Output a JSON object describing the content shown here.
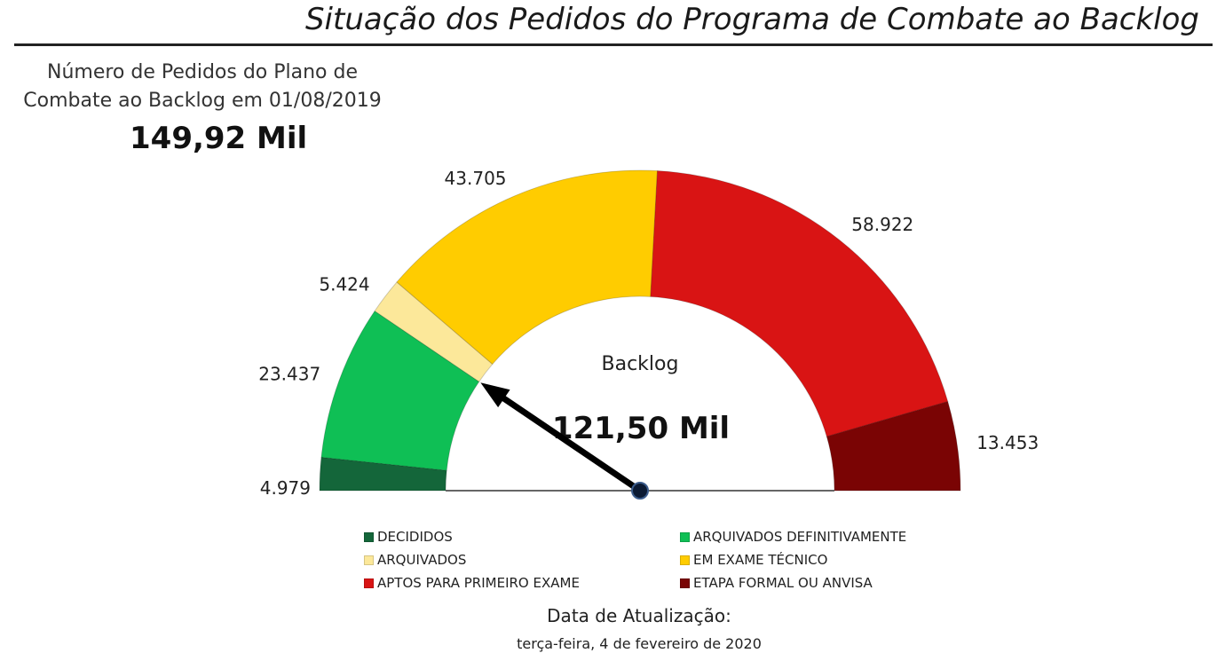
{
  "header": {
    "title": "Situação dos Pedidos do Programa de Combate ao Backlog"
  },
  "kpi": {
    "label": "Número de Pedidos do Plano de Combate ao Backlog em 01/08/2019",
    "value": "149,92 Mil"
  },
  "chart_data": {
    "type": "gauge",
    "center_label": "Backlog",
    "center_value": "121,50 Mil",
    "series": [
      {
        "name": "DECIDIDOS",
        "value": 4979,
        "label": "4.979",
        "color": "#14663a"
      },
      {
        "name": "ARQUIVADOS DEFINITIVAMENTE",
        "value": 23437,
        "label": "23.437",
        "color": "#0fbf55"
      },
      {
        "name": "ARQUIVADOS",
        "value": 5424,
        "label": "5.424",
        "color": "#fce89a"
      },
      {
        "name": "EM EXAME TÉCNICO",
        "value": 43705,
        "label": "43.705",
        "color": "#ffcc00"
      },
      {
        "name": "APTOS PARA PRIMEIRO EXAME",
        "value": 58922,
        "label": "58.922",
        "color": "#d91414"
      },
      {
        "name": "ETAPA FORMAL OU ANVISA",
        "value": 13453,
        "label": "13.453",
        "color": "#7a0404"
      }
    ],
    "needle_value": 28416,
    "needle_color": "#000000"
  },
  "footer": {
    "update_label": "Data de Atualização:",
    "update_date": "terça-feira, 4 de fevereiro de 2020"
  }
}
